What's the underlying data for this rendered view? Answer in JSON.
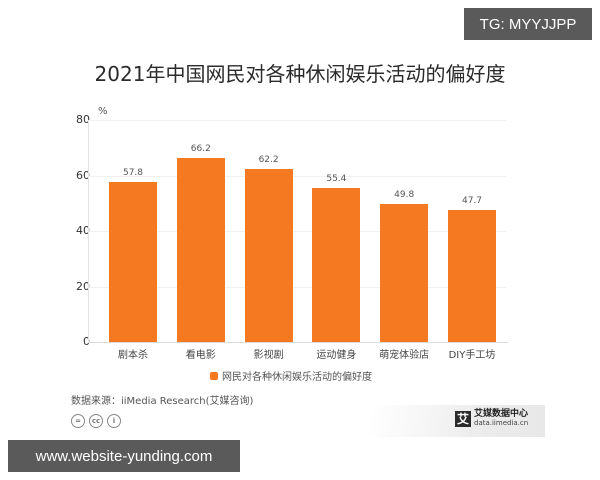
{
  "overlay": {
    "tg_badge": "TG: MYYJJPP",
    "watermark": "www.website-yunding.com"
  },
  "chart_data": {
    "type": "bar",
    "title": "2021年中国网民对各种休闲娱乐活动的偏好度",
    "ylabel": "%",
    "xlabel": "",
    "ylim": [
      0,
      80
    ],
    "yticks": [
      "0",
      "20",
      "40",
      "60",
      "80"
    ],
    "grid": true,
    "legend_position": "bottom",
    "categories": [
      "剧本杀",
      "看电影",
      "影视剧",
      "运动健身",
      "萌宠体验店",
      "DIY手工坊"
    ],
    "series": [
      {
        "name": "网民对各种休闲娱乐活动的偏好度",
        "color": "#F47920",
        "values": [
          57.8,
          66.2,
          62.2,
          55.4,
          49.8,
          47.7
        ]
      }
    ],
    "value_labels": [
      "57.8",
      "66.2",
      "62.2",
      "55.4",
      "49.8",
      "47.7"
    ]
  },
  "footer": {
    "source": "数据来源：iiMedia Research(艾媒咨询)",
    "license_icons": [
      "no-derivatives-icon",
      "creative-commons-icon",
      "attribution-icon"
    ],
    "license_glyphs": [
      "=",
      "cc",
      "i"
    ],
    "brand_logo_char": "艾",
    "brand_name": "艾媒数据中心",
    "brand_url": "data.iimedia.cn"
  }
}
